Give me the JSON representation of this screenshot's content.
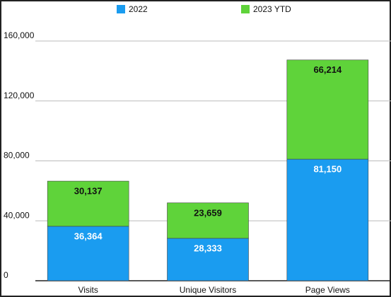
{
  "chart_data": {
    "type": "stacked_bar",
    "categories": [
      "Visits",
      "Unique Visitors",
      "Page Views"
    ],
    "series": [
      {
        "name": "2022",
        "color": "#1a9cf0",
        "values": [
          36364,
          28333,
          81150
        ],
        "value_labels": [
          "36,364",
          "28,333",
          "81,150"
        ]
      },
      {
        "name": "2023 YTD",
        "color": "#5fd33a",
        "values": [
          30137,
          23659,
          66214
        ],
        "value_labels": [
          "30,137",
          "23,659",
          "66,214"
        ]
      }
    ],
    "ylim": [
      0,
      160000
    ],
    "yticks": [
      0,
      {
        "value": 40000,
        "label": "40,000"
      },
      {
        "value": 80000,
        "label": "80,000"
      },
      {
        "value": 120000,
        "label": "120,000"
      },
      {
        "value": 160000,
        "label": "160,000"
      }
    ],
    "grid": true,
    "legend": "top"
  }
}
